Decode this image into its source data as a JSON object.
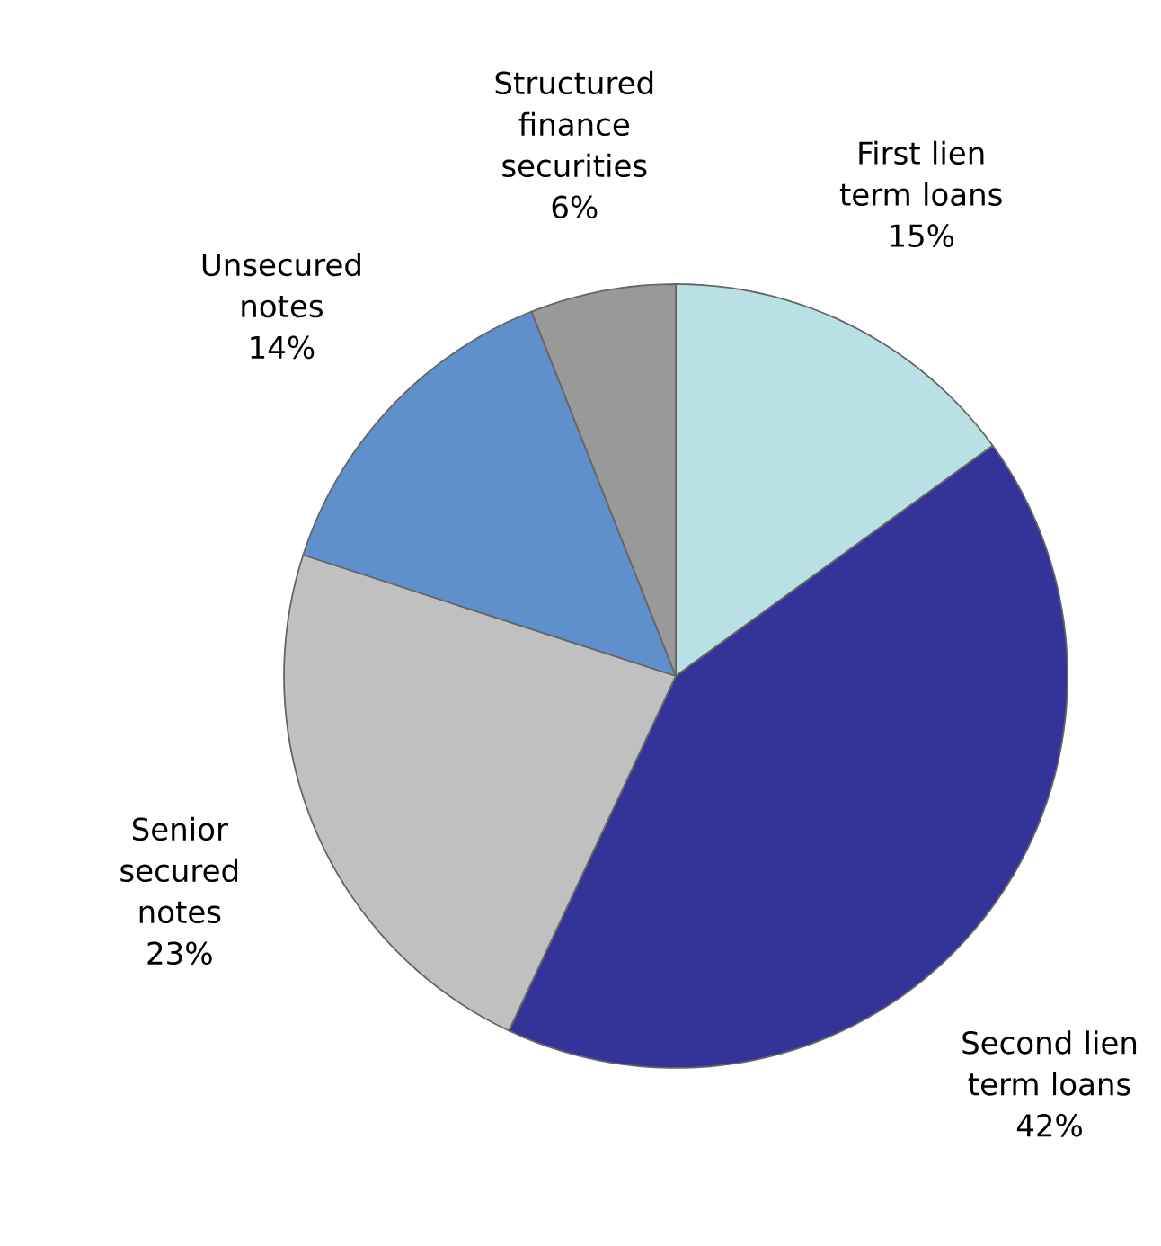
{
  "chart_data": {
    "type": "pie",
    "categories": [
      "First lien term loans",
      "Second lien term loans",
      "Senior secured notes",
      "Unsecured notes",
      "Structured finance securities"
    ],
    "values": [
      15,
      42,
      23,
      14,
      6
    ],
    "value_labels": [
      "15%",
      "42%",
      "23%",
      "14%",
      "6%"
    ],
    "colors": [
      "#b9e0e4",
      "#333399",
      "#c0c0c0",
      "#6090cc",
      "#999999"
    ]
  }
}
